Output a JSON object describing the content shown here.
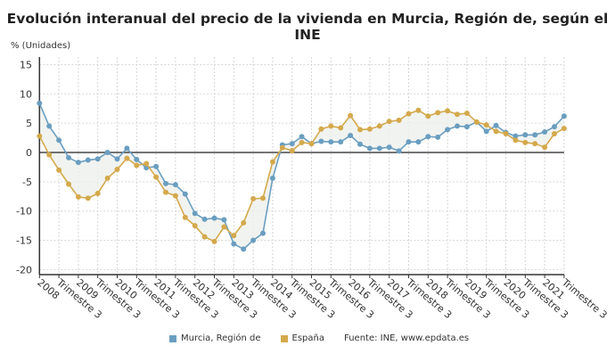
{
  "title": "Evolución interanual del precio de la vivienda en Murcia, Región de, según el INE",
  "legend": {
    "items": [
      {
        "label": "Murcia, Región de",
        "color": "#6a9ec0"
      },
      {
        "label": "España",
        "color": "#d4a94c"
      }
    ],
    "source": "Fuente: INE, www.epdata.es"
  },
  "chart_data": {
    "type": "line",
    "title": "Evolución interanual del precio de la vivienda en Murcia, Región de, según el INE",
    "ylabel": "% (Unidades)",
    "xlabel": "",
    "ylim": [
      -20,
      15
    ],
    "yticks": [
      15,
      10,
      5,
      0,
      -5,
      -10,
      -15,
      -20
    ],
    "grid": true,
    "legend_position": "bottom",
    "x_tick_labels": [
      "2008",
      "Trimestre 3",
      "2009",
      "Trimestre 3",
      "2010",
      "Trimestre 3",
      "2011",
      "Trimestre 3",
      "2012",
      "Trimestre 3",
      "2013",
      "Trimestre 3",
      "2014",
      "Trimestre 3",
      "2015",
      "Trimestre 3",
      "2016",
      "Trimestre 3",
      "2017",
      "Trimestre 3",
      "2018",
      "Trimestre 3",
      "2019",
      "Trimestre 3",
      "2020",
      "Trimestre 3",
      "2021",
      "Trimestre 3"
    ],
    "x_range": [
      "2008 T1",
      "2021 T3"
    ],
    "series": [
      {
        "name": "Murcia, Región de",
        "color": "#6a9ec0",
        "values": [
          8.4,
          4.5,
          2.1,
          -0.9,
          -1.7,
          -1.3,
          -1.1,
          0.0,
          -1.1,
          0.7,
          -1.2,
          -2.6,
          -2.4,
          -5.3,
          -5.5,
          -7.1,
          -10.4,
          -11.4,
          -11.2,
          -11.5,
          -15.6,
          -16.5,
          -15.0,
          -13.8,
          -4.4,
          1.3,
          1.5,
          2.7,
          1.5,
          1.9,
          1.8,
          1.8,
          2.9,
          1.4,
          0.7,
          0.7,
          0.9,
          0.25,
          1.8,
          1.8,
          2.7,
          2.6,
          3.9,
          4.5,
          4.4,
          5.2,
          3.6,
          4.6,
          3.4,
          2.8,
          3.0,
          3.0,
          3.5,
          4.4,
          6.2
        ]
      },
      {
        "name": "España",
        "color": "#d4a94c",
        "values": [
          2.8,
          -0.4,
          -3.0,
          -5.4,
          -7.6,
          -7.8,
          -7.0,
          -4.4,
          -2.9,
          -1.0,
          -2.2,
          -1.9,
          -4.2,
          -6.8,
          -7.4,
          -11.1,
          -12.5,
          -14.4,
          -15.2,
          -12.7,
          -14.2,
          -12.0,
          -7.9,
          -7.8,
          -1.6,
          0.8,
          0.3,
          1.7,
          1.5,
          4.0,
          4.5,
          4.2,
          6.3,
          3.9,
          4.0,
          4.5,
          5.3,
          5.5,
          6.6,
          7.2,
          6.2,
          6.8,
          7.1,
          6.5,
          6.7,
          5.2,
          4.7,
          3.6,
          3.2,
          2.1,
          1.7,
          1.5,
          0.9,
          3.2,
          4.1
        ]
      }
    ]
  }
}
